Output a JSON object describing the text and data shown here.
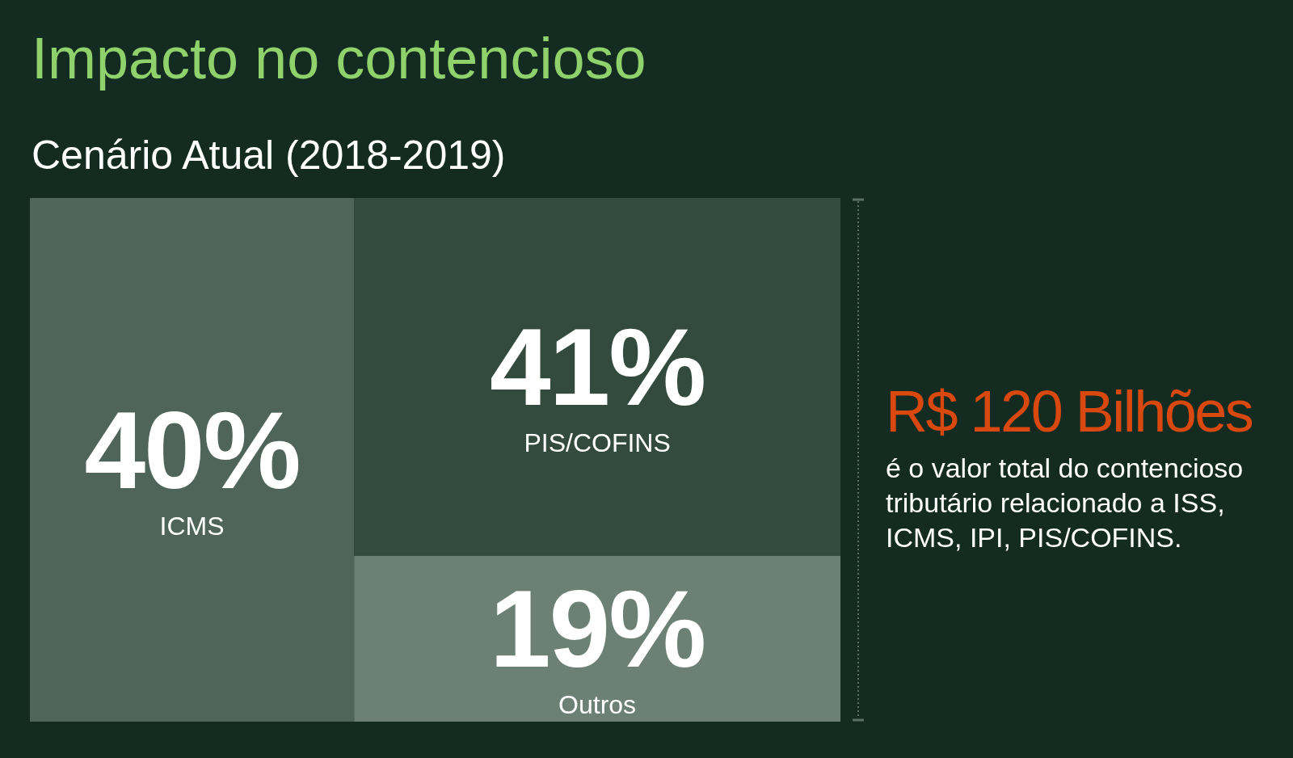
{
  "chart_data": {
    "type": "other",
    "title": "Impacto no contencioso",
    "subtitle": "Cenário Atual (2018-2019)",
    "categories": [
      "ICMS",
      "PIS/COFINS",
      "Outros"
    ],
    "values": [
      40,
      41,
      19
    ],
    "colors": [
      "#4f645a",
      "#334b3f",
      "#6c8076"
    ],
    "value_labels": [
      "40%",
      "41%",
      "19%"
    ],
    "annotations": [
      "R$ 120 Bilhões",
      "é o valor total do contencioso tributário relacionado a ISS, ICMS, IPI, PIS/COFINS."
    ]
  }
}
